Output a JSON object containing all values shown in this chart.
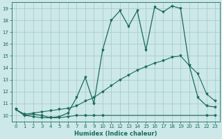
{
  "xlabel": "Humidex (Indice chaleur)",
  "bg_color": "#cce8e8",
  "grid_color": "#aacccc",
  "line_color": "#1a6b5a",
  "xlim": [
    -0.5,
    23.5
  ],
  "ylim": [
    9.5,
    19.5
  ],
  "yticks": [
    10,
    11,
    12,
    13,
    14,
    15,
    16,
    17,
    18,
    19
  ],
  "xticks": [
    0,
    1,
    2,
    3,
    4,
    5,
    6,
    7,
    8,
    9,
    10,
    11,
    12,
    13,
    14,
    15,
    16,
    17,
    18,
    19,
    20,
    21,
    22,
    23
  ],
  "curve1_x": [
    0,
    1,
    2,
    3,
    4,
    5,
    6,
    7,
    8,
    9,
    10,
    22,
    23
  ],
  "curve1_y": [
    10.5,
    10.0,
    9.9,
    9.8,
    9.8,
    9.8,
    9.9,
    10.0,
    10.0,
    10.0,
    10.0,
    10.0,
    10.0
  ],
  "curve2_x": [
    0,
    1,
    2,
    3,
    4,
    5,
    6,
    7,
    8,
    9,
    10,
    11,
    12,
    13,
    14,
    15,
    16,
    17,
    18,
    19,
    20,
    21,
    22,
    23
  ],
  "curve2_y": [
    10.5,
    10.1,
    10.2,
    10.3,
    10.4,
    10.5,
    10.6,
    10.8,
    11.2,
    11.5,
    12.0,
    12.5,
    13.0,
    13.4,
    13.8,
    14.1,
    14.4,
    14.6,
    14.9,
    15.0,
    14.2,
    13.5,
    11.8,
    11.2
  ],
  "curve3_x": [
    0,
    1,
    2,
    3,
    4,
    5,
    6,
    7,
    8,
    9,
    10,
    11,
    12,
    13,
    14,
    15,
    16,
    17,
    18,
    19,
    20,
    21,
    22,
    23
  ],
  "curve3_y": [
    10.5,
    10.0,
    10.1,
    10.0,
    9.8,
    9.9,
    10.2,
    11.5,
    13.2,
    11.0,
    15.5,
    18.0,
    18.8,
    17.5,
    18.8,
    15.5,
    19.1,
    18.7,
    19.2,
    19.0,
    14.2,
    11.5,
    10.8,
    10.7
  ]
}
